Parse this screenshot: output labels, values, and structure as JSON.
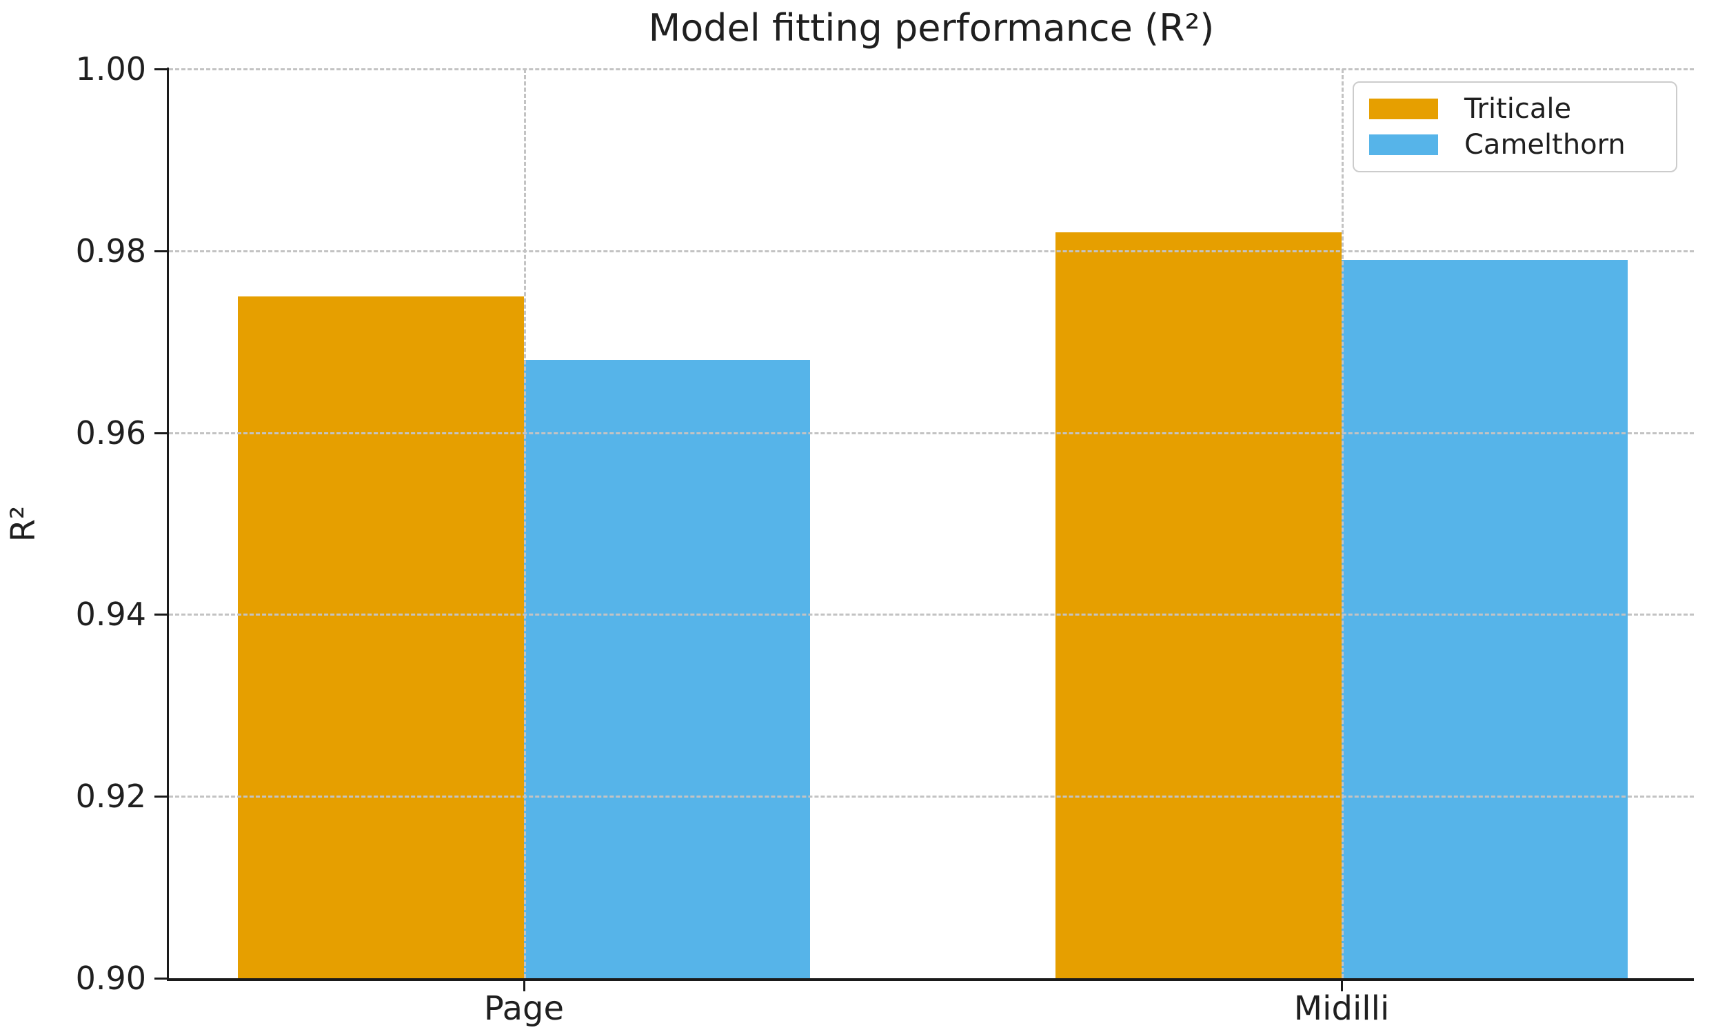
{
  "chart": {
    "title": "Model fitting performance (R²)",
    "ylabel": "R²"
  },
  "chart_data": {
    "type": "bar",
    "title": "Model fitting performance (R²)",
    "xlabel": "",
    "ylabel": "R²",
    "categories": [
      "Page",
      "Midilli"
    ],
    "series": [
      {
        "name": "Triticale",
        "color": "#E69F00",
        "values": [
          0.975,
          0.982
        ]
      },
      {
        "name": "Camelthorn",
        "color": "#56B4E9",
        "values": [
          0.968,
          0.979
        ]
      }
    ],
    "ylim": [
      0.9,
      1.0
    ],
    "yticks": [
      0.9,
      0.92,
      0.94,
      0.96,
      0.98,
      1.0
    ],
    "ytick_labels": [
      "0.90",
      "0.92",
      "0.94",
      "0.96",
      "0.98",
      "1.00"
    ],
    "grid": "dashed horizontal and vertical, light gray",
    "legend_position": "upper right",
    "background_color": "#ffffff",
    "text_color": "#1f1f1f"
  }
}
